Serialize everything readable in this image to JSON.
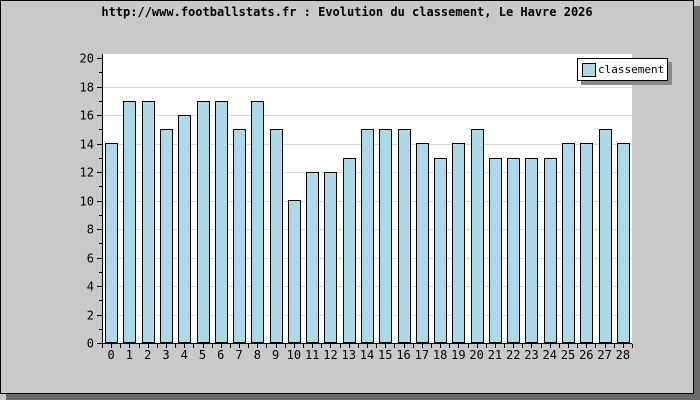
{
  "title": "http://www.footballstats.fr : Evolution du classement, Le Havre 2026",
  "legend": {
    "label": "classement"
  },
  "colors": {
    "background": "#C9C9C9",
    "frame_shadow": "#696969",
    "plot_background": "#FFFFFF",
    "gridline": "#DADADA",
    "bar_fill": "#ADD8E6",
    "bar_border": "#000000",
    "axis": "#000000",
    "text": "#000000",
    "legend_background": "#FFFFFF",
    "legend_shadow": "#8A8A8A"
  },
  "chart_data": {
    "type": "bar",
    "title": "http://www.footballstats.fr : Evolution du classement, Le Havre 2026",
    "categories": [
      "0",
      "1",
      "2",
      "3",
      "4",
      "5",
      "6",
      "7",
      "8",
      "9",
      "10",
      "11",
      "12",
      "13",
      "14",
      "15",
      "16",
      "17",
      "18",
      "19",
      "20",
      "21",
      "22",
      "23",
      "24",
      "25",
      "26",
      "27",
      "28"
    ],
    "series": [
      {
        "name": "classement",
        "values": [
          14,
          17,
          17,
          15,
          16,
          17,
          17,
          15,
          17,
          15,
          10,
          12,
          12,
          13,
          15,
          15,
          15,
          14,
          13,
          14,
          15,
          13,
          13,
          13,
          13,
          14,
          14,
          15,
          14
        ]
      }
    ],
    "xlabel": "",
    "ylabel": "",
    "ylim": [
      0,
      20
    ],
    "y_tick_step": 2,
    "y_minor_tick_step": 1,
    "grid": "horizontal",
    "legend_position": "top-right"
  }
}
